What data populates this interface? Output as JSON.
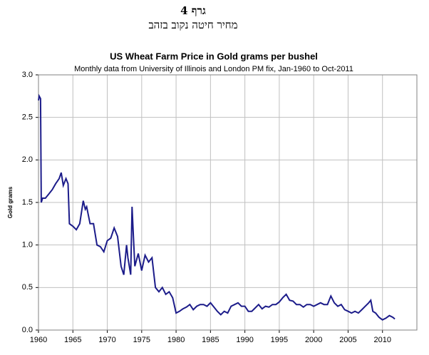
{
  "header": {
    "title": "גרף 4",
    "subtitle": "מחיר חיטה נקוב בזהב"
  },
  "chart_data": {
    "type": "line",
    "title": "US Wheat Farm Price in Gold grams per bushel",
    "subtitle": "Monthly data from University of Illinois and London PM fix, Jan-1960 to Oct-2011",
    "y_label": "Gold grams",
    "xlim": [
      1960,
      2015
    ],
    "xticks": [
      1960,
      1965,
      1970,
      1975,
      1980,
      1985,
      1990,
      1995,
      2000,
      2005,
      2010
    ],
    "ylim": [
      0,
      3
    ],
    "yticks": [
      {
        "value": 0,
        "label": "0.0"
      },
      0.5,
      {
        "value": 1,
        "label": "1.0"
      },
      1.5,
      {
        "value": 2,
        "label": "2.0"
      },
      2.5,
      {
        "value": 3,
        "label": "3.0"
      }
    ],
    "grid": true,
    "x": [
      1960.0,
      1960.1,
      1960.3,
      1960.4,
      1960.6,
      1961,
      1961.5,
      1962,
      1962.5,
      1963,
      1963.3,
      1963.6,
      1964,
      1964.3,
      1964.5,
      1965,
      1965.5,
      1966,
      1966.5,
      1966.8,
      1967,
      1967.5,
      1968,
      1968.5,
      1969,
      1969.5,
      1970,
      1970.5,
      1971,
      1971.5,
      1972,
      1972.4,
      1972.8,
      1973,
      1973.4,
      1973.6,
      1973.8,
      1974,
      1974.5,
      1975,
      1975.5,
      1976,
      1976.5,
      1977,
      1977.5,
      1978,
      1978.5,
      1979,
      1979.5,
      1980,
      1980.5,
      1981,
      1981.5,
      1982,
      1982.5,
      1983,
      1983.5,
      1984,
      1984.5,
      1985,
      1985.5,
      1986,
      1986.5,
      1987,
      1987.5,
      1988,
      1988.5,
      1989,
      1989.5,
      1990,
      1990.5,
      1991,
      1991.5,
      1992,
      1992.5,
      1993,
      1993.5,
      1994,
      1994.5,
      1995,
      1995.5,
      1996,
      1996.5,
      1997,
      1997.5,
      1998,
      1998.5,
      1999,
      1999.5,
      2000,
      2000.5,
      2001,
      2001.5,
      2002,
      2002.5,
      2003,
      2003.5,
      2004,
      2004.5,
      2005,
      2005.5,
      2006,
      2006.5,
      2007,
      2007.5,
      2008,
      2008.3,
      2008.6,
      2009,
      2009.5,
      2010,
      2010.5,
      2011,
      2011.5,
      2011.8
    ],
    "series": [
      {
        "color": "#1c1c8a",
        "values": [
          2.7,
          2.75,
          2.72,
          1.5,
          1.55,
          1.55,
          1.6,
          1.65,
          1.72,
          1.78,
          1.85,
          1.7,
          1.78,
          1.72,
          1.25,
          1.22,
          1.18,
          1.25,
          1.52,
          1.42,
          1.45,
          1.25,
          1.25,
          1.0,
          0.98,
          0.92,
          1.05,
          1.08,
          1.2,
          1.1,
          0.75,
          0.65,
          1.0,
          0.85,
          0.65,
          1.45,
          1.1,
          0.75,
          0.9,
          0.7,
          0.88,
          0.8,
          0.85,
          0.5,
          0.45,
          0.5,
          0.42,
          0.45,
          0.38,
          0.2,
          0.22,
          0.25,
          0.27,
          0.3,
          0.24,
          0.28,
          0.3,
          0.3,
          0.28,
          0.32,
          0.27,
          0.22,
          0.18,
          0.22,
          0.2,
          0.28,
          0.3,
          0.32,
          0.28,
          0.28,
          0.22,
          0.22,
          0.26,
          0.3,
          0.25,
          0.28,
          0.27,
          0.3,
          0.3,
          0.33,
          0.38,
          0.42,
          0.35,
          0.34,
          0.3,
          0.3,
          0.27,
          0.3,
          0.3,
          0.28,
          0.3,
          0.32,
          0.3,
          0.3,
          0.4,
          0.32,
          0.28,
          0.3,
          0.24,
          0.22,
          0.2,
          0.22,
          0.2,
          0.24,
          0.28,
          0.32,
          0.35,
          0.22,
          0.2,
          0.15,
          0.12,
          0.14,
          0.17,
          0.15,
          0.13
        ]
      }
    ]
  }
}
